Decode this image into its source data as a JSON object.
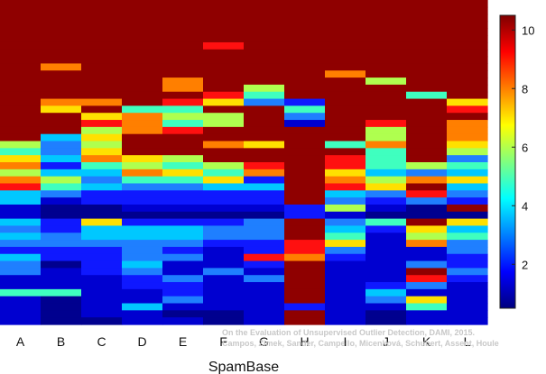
{
  "chart_data": {
    "type": "heatmap",
    "xlabel": "SpamBase",
    "ylabel": "",
    "title": "",
    "categories": [
      "A",
      "B",
      "C",
      "D",
      "E",
      "F",
      "G",
      "H",
      "I",
      "J",
      "K",
      "L"
    ],
    "colorbar": {
      "ticks": [
        2,
        4,
        6,
        8,
        10
      ],
      "range": [
        0.5,
        10.5
      ],
      "colormap": "jet"
    },
    "n_rows": 46,
    "columns": [
      [
        10,
        10,
        10,
        10,
        10,
        10,
        10,
        10,
        10,
        10,
        10,
        10,
        10,
        10,
        10,
        10,
        10,
        10,
        10,
        10,
        6,
        5,
        7,
        8,
        6,
        8,
        9,
        4,
        4,
        1,
        1,
        4,
        3,
        4,
        3,
        2,
        4,
        3,
        3,
        1,
        1,
        5,
        1,
        1,
        1,
        1
      ],
      [
        10,
        10,
        10,
        10,
        10,
        10,
        10,
        10,
        10,
        8,
        10,
        10,
        10,
        10,
        8,
        7,
        10,
        10,
        10,
        4,
        3,
        3,
        4,
        2,
        4,
        6,
        5,
        3,
        1,
        0,
        0,
        2,
        2,
        3,
        3,
        2,
        2,
        0,
        1,
        1,
        1,
        5,
        0,
        0,
        0,
        0
      ],
      [
        10,
        10,
        10,
        10,
        10,
        10,
        10,
        10,
        10,
        10,
        10,
        10,
        10,
        10,
        8,
        10,
        7,
        9,
        6,
        7,
        6,
        7,
        8,
        5,
        4,
        3,
        4,
        2,
        2,
        0,
        0,
        7,
        4,
        4,
        3,
        2,
        2,
        2,
        2,
        1,
        1,
        1,
        1,
        1,
        1,
        0
      ],
      [
        10,
        10,
        10,
        10,
        10,
        10,
        10,
        10,
        10,
        10,
        10,
        10,
        10,
        10,
        10,
        5,
        8,
        8,
        8,
        10,
        10,
        10,
        7,
        6,
        8,
        5,
        3,
        2,
        2,
        1,
        0,
        2,
        4,
        4,
        3,
        3,
        3,
        4,
        3,
        2,
        2,
        1,
        1,
        4,
        1,
        1
      ],
      [
        10,
        10,
        10,
        10,
        10,
        10,
        10,
        10,
        10,
        10,
        10,
        8,
        8,
        10,
        9,
        5,
        6,
        5,
        9,
        10,
        10,
        10,
        6,
        5,
        7,
        5,
        3,
        2,
        2,
        1,
        0,
        2,
        4,
        4,
        3,
        2,
        3,
        1,
        1,
        3,
        2,
        2,
        3,
        1,
        0,
        1
      ],
      [
        10,
        10,
        10,
        10,
        10,
        10,
        9,
        10,
        10,
        10,
        10,
        10,
        10,
        9,
        7,
        10,
        6,
        6,
        10,
        10,
        8,
        10,
        10,
        6,
        5,
        7,
        4,
        2,
        2,
        1,
        0,
        2,
        3,
        3,
        2,
        1,
        1,
        1,
        3,
        1,
        1,
        1,
        1,
        1,
        0,
        0
      ],
      [
        10,
        10,
        10,
        10,
        10,
        10,
        10,
        10,
        10,
        10,
        10,
        10,
        6,
        5,
        3,
        10,
        10,
        10,
        10,
        10,
        7,
        10,
        10,
        9,
        8,
        2,
        4,
        2,
        2,
        1,
        0,
        3,
        3,
        3,
        2,
        2,
        9,
        2,
        1,
        3,
        1,
        1,
        1,
        1,
        1,
        1
      ],
      [
        10,
        10,
        10,
        10,
        10,
        10,
        10,
        10,
        10,
        10,
        10,
        10,
        10,
        10,
        2,
        5,
        3,
        1,
        10,
        10,
        10,
        10,
        10,
        10,
        10,
        10,
        10,
        10,
        10,
        2,
        2,
        10,
        10,
        10,
        9,
        9,
        8,
        10,
        10,
        10,
        10,
        10,
        10,
        2,
        10,
        10
      ],
      [
        10,
        10,
        10,
        10,
        10,
        10,
        10,
        10,
        10,
        10,
        8,
        10,
        10,
        10,
        10,
        10,
        10,
        10,
        10,
        10,
        5,
        10,
        9,
        9,
        7,
        8,
        9,
        4,
        3,
        6,
        1,
        3,
        4,
        5,
        7,
        3,
        2,
        1,
        1,
        1,
        1,
        1,
        1,
        1,
        1,
        1
      ],
      [
        10,
        10,
        10,
        10,
        10,
        10,
        10,
        10,
        10,
        10,
        10,
        6,
        10,
        10,
        10,
        10,
        10,
        9,
        6,
        6,
        8,
        5,
        5,
        5,
        4,
        6,
        7,
        3,
        2,
        1,
        0,
        5,
        2,
        1,
        1,
        1,
        1,
        1,
        1,
        1,
        2,
        4,
        3,
        1,
        0,
        0
      ],
      [
        10,
        10,
        10,
        10,
        10,
        10,
        10,
        10,
        10,
        10,
        10,
        10,
        10,
        5,
        10,
        10,
        10,
        10,
        10,
        10,
        10,
        10,
        10,
        6,
        3,
        8,
        10,
        9,
        3,
        0,
        0,
        10,
        7,
        6,
        8,
        1,
        1,
        3,
        10,
        9,
        3,
        1,
        7,
        5,
        1,
        1
      ],
      [
        10,
        10,
        10,
        10,
        10,
        10,
        10,
        10,
        10,
        10,
        10,
        10,
        10,
        10,
        7,
        9,
        10,
        8,
        8,
        8,
        7,
        6,
        3,
        5,
        4,
        7,
        4,
        3,
        2,
        10,
        0,
        7,
        4,
        5,
        3,
        3,
        2,
        2,
        3,
        2,
        1,
        1,
        1,
        1,
        1,
        1
      ]
    ]
  },
  "watermark": {
    "line1": "On the Evaluation of Unsupervised Outlier Detection, DAMI, 2015.",
    "line2": "Campos, Zimek, Sander, Campello, Micenková, Schubert, Assent, Houle"
  }
}
